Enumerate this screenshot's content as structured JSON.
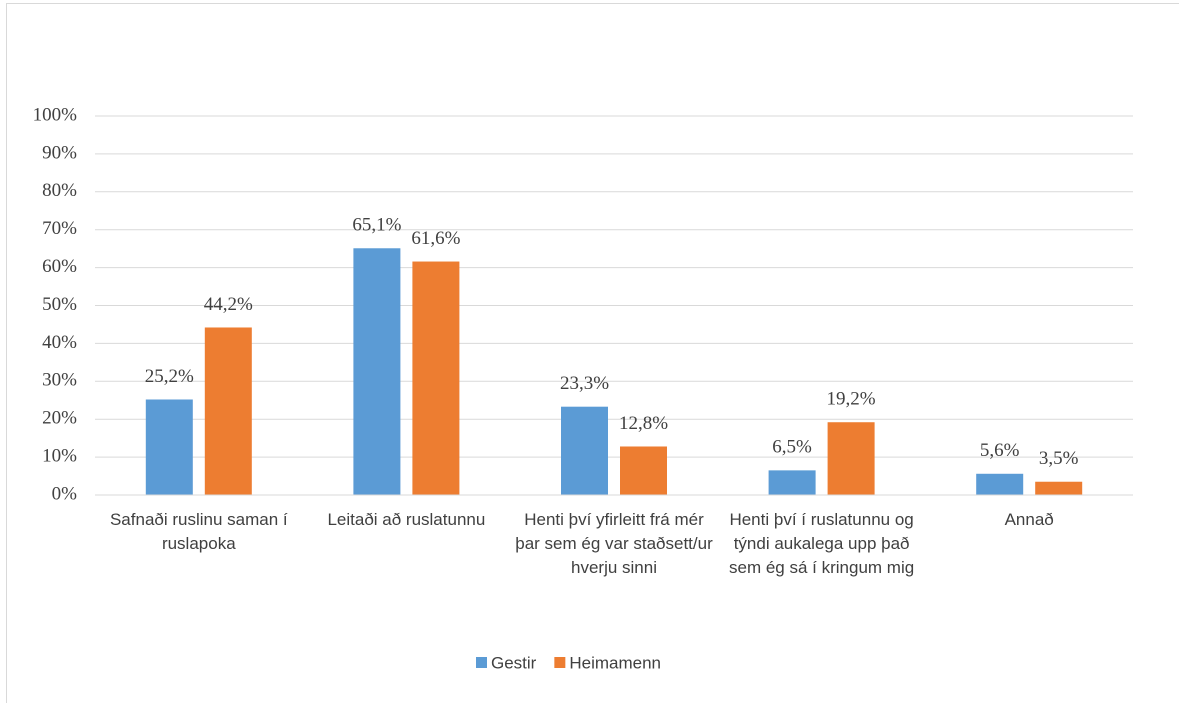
{
  "chart_data": {
    "type": "bar",
    "categories": [
      "Safnaði ruslinu saman í ruslapoka",
      "Leitaði að ruslatunnu",
      "Henti því yfirleitt frá mér þar sem ég var staðsett/ur hverju sinni",
      "Henti því í ruslatunnu og týndi aukalega upp það sem ég sá í kringum mig",
      "Annað"
    ],
    "series": [
      {
        "name": "Gestir",
        "color": "#5b9bd5",
        "values": [
          25.2,
          65.1,
          23.3,
          6.5,
          5.6
        ],
        "value_labels": [
          "25,2%",
          "65,1%",
          "23,3%",
          "6,5%",
          "5,6%"
        ]
      },
      {
        "name": "Heimamenn",
        "color": "#ed7d31",
        "values": [
          44.2,
          61.6,
          12.8,
          19.2,
          3.5
        ],
        "value_labels": [
          "44,2%",
          "61,6%",
          "12,8%",
          "19,2%",
          "3,5%"
        ]
      }
    ],
    "ylim": [
      0,
      100
    ],
    "yticks": [
      {
        "value": 0,
        "label": "0%"
      },
      {
        "value": 10,
        "label": "10%"
      },
      {
        "value": 20,
        "label": "20%"
      },
      {
        "value": 30,
        "label": "30%"
      },
      {
        "value": 40,
        "label": "40%"
      },
      {
        "value": 50,
        "label": "50%"
      },
      {
        "value": 60,
        "label": "60%"
      },
      {
        "value": 70,
        "label": "70%"
      },
      {
        "value": 80,
        "label": "80%"
      },
      {
        "value": 90,
        "label": "90%"
      },
      {
        "value": 100,
        "label": "100%"
      }
    ],
    "grid": true,
    "legend": "bottom"
  }
}
